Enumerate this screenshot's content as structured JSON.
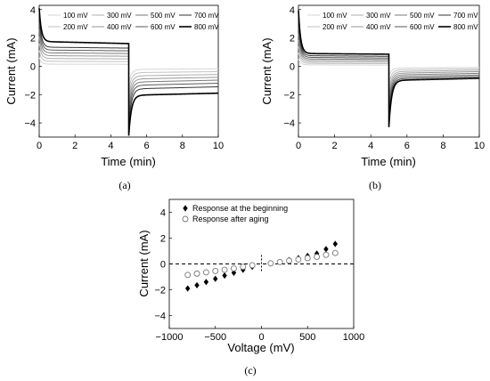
{
  "chart_data": [
    {
      "id": "a",
      "caption": "(a)",
      "type": "line",
      "xlabel": "Time (min)",
      "ylabel": "Current (mA)",
      "xlim": [
        0,
        10
      ],
      "ylim": [
        -5,
        4.3
      ],
      "xticks": [
        "0",
        "2",
        "4",
        "6",
        "8",
        "10"
      ],
      "yticks": [
        "4",
        "2",
        "0",
        "−2",
        "−4"
      ],
      "legend": {
        "position": "top",
        "columns": 4
      },
      "series": [
        {
          "name": "100 mV",
          "color": "#d6d6d6",
          "width": 1.0,
          "peak_on": 0.6,
          "plateau_on": 0.15,
          "end_on": 0.14,
          "peak_off": -1.2,
          "plateau_off": -0.22,
          "end_off": -0.18
        },
        {
          "name": "200 mV",
          "color": "#c2c2c2",
          "width": 1.0,
          "peak_on": 1.1,
          "plateau_on": 0.35,
          "end_on": 0.33,
          "peak_off": -1.7,
          "plateau_off": -0.45,
          "end_off": -0.38
        },
        {
          "name": "300 mV",
          "color": "#adadad",
          "width": 1.0,
          "peak_on": 1.6,
          "plateau_on": 0.55,
          "end_on": 0.52,
          "peak_off": -2.2,
          "plateau_off": -0.68,
          "end_off": -0.58
        },
        {
          "name": "400 mV",
          "color": "#969696",
          "width": 1.0,
          "peak_on": 2.1,
          "plateau_on": 0.75,
          "end_on": 0.71,
          "peak_off": -2.7,
          "plateau_off": -0.9,
          "end_off": -0.78
        },
        {
          "name": "500 mV",
          "color": "#7a7a7a",
          "width": 1.0,
          "peak_on": 2.6,
          "plateau_on": 0.95,
          "end_on": 0.9,
          "peak_off": -3.2,
          "plateau_off": -1.12,
          "end_off": -0.98
        },
        {
          "name": "600 mV",
          "color": "#5a5a5a",
          "width": 1.0,
          "peak_on": 3.1,
          "plateau_on": 1.15,
          "end_on": 1.09,
          "peak_off": -3.7,
          "plateau_off": -1.35,
          "end_off": -1.2
        },
        {
          "name": "700 mV",
          "color": "#333333",
          "width": 1.0,
          "peak_on": 3.6,
          "plateau_on": 1.35,
          "end_on": 1.28,
          "peak_off": -4.3,
          "plateau_off": -1.6,
          "end_off": -1.45
        },
        {
          "name": "800 mV",
          "color": "#000000",
          "width": 1.6,
          "peak_on": 4.1,
          "plateau_on": 1.75,
          "end_on": 1.6,
          "peak_off": -4.9,
          "plateau_off": -2.05,
          "end_off": -1.9
        }
      ]
    },
    {
      "id": "b",
      "caption": "(b)",
      "type": "line",
      "xlabel": "Time (min)",
      "ylabel": "Current (mA)",
      "xlim": [
        0,
        10
      ],
      "ylim": [
        -5,
        4.3
      ],
      "xticks": [
        "0",
        "2",
        "4",
        "6",
        "8",
        "10"
      ],
      "yticks": [
        "4",
        "2",
        "0",
        "−2",
        "−4"
      ],
      "legend": {
        "position": "top",
        "columns": 4
      },
      "series": [
        {
          "name": "100 mV",
          "color": "#d6d6d6",
          "width": 1.0,
          "peak_on": 0.5,
          "plateau_on": 0.1,
          "end_on": 0.08,
          "peak_off": -0.7,
          "plateau_off": -0.12,
          "end_off": -0.08
        },
        {
          "name": "200 mV",
          "color": "#c2c2c2",
          "width": 1.0,
          "peak_on": 0.95,
          "plateau_on": 0.2,
          "end_on": 0.18,
          "peak_off": -1.2,
          "plateau_off": -0.25,
          "end_off": -0.18
        },
        {
          "name": "300 mV",
          "color": "#adadad",
          "width": 1.0,
          "peak_on": 1.4,
          "plateau_on": 0.3,
          "end_on": 0.28,
          "peak_off": -1.7,
          "plateau_off": -0.38,
          "end_off": -0.28
        },
        {
          "name": "400 mV",
          "color": "#969696",
          "width": 1.0,
          "peak_on": 1.85,
          "plateau_on": 0.42,
          "end_on": 0.38,
          "peak_off": -2.2,
          "plateau_off": -0.5,
          "end_off": -0.38
        },
        {
          "name": "500 mV",
          "color": "#7a7a7a",
          "width": 1.0,
          "peak_on": 2.3,
          "plateau_on": 0.52,
          "end_on": 0.48,
          "peak_off": -2.7,
          "plateau_off": -0.62,
          "end_off": -0.5
        },
        {
          "name": "600 mV",
          "color": "#5a5a5a",
          "width": 1.0,
          "peak_on": 2.8,
          "plateau_on": 0.63,
          "end_on": 0.58,
          "peak_off": -3.2,
          "plateau_off": -0.75,
          "end_off": -0.62
        },
        {
          "name": "700 mV",
          "color": "#333333",
          "width": 1.0,
          "peak_on": 3.3,
          "plateau_on": 0.75,
          "end_on": 0.7,
          "peak_off": -3.7,
          "plateau_off": -0.88,
          "end_off": -0.74
        },
        {
          "name": "800 mV",
          "color": "#000000",
          "width": 1.6,
          "peak_on": 3.95,
          "plateau_on": 0.9,
          "end_on": 0.85,
          "peak_off": -4.3,
          "plateau_off": -1.0,
          "end_off": -0.85
        }
      ]
    },
    {
      "id": "c",
      "caption": "(c)",
      "type": "scatter",
      "xlabel": "Voltage (mV)",
      "ylabel": "Current (mA)",
      "xlim": [
        -1000,
        1000
      ],
      "ylim": [
        -5,
        5
      ],
      "xticks": [
        "−1000",
        "−500",
        "0",
        "500",
        "1000"
      ],
      "yticks": [
        "4",
        "2",
        "0",
        "−2",
        "−4"
      ],
      "legend": {
        "position": "top-left"
      },
      "reference_lines": {
        "horizontal": 0,
        "vertical": 0,
        "style": "dashed"
      },
      "series": [
        {
          "name": "Response at the beginning",
          "marker": "diamond-filled",
          "x": [
            -800,
            -700,
            -600,
            -500,
            -400,
            -300,
            -200,
            -100,
            100,
            200,
            300,
            400,
            500,
            600,
            700,
            800
          ],
          "y": [
            -1.9,
            -1.65,
            -1.4,
            -1.15,
            -0.9,
            -0.68,
            -0.45,
            -0.22,
            0.05,
            0.15,
            0.3,
            0.45,
            0.62,
            0.8,
            1.15,
            1.55
          ]
        },
        {
          "name": "Response after aging",
          "marker": "circle-open",
          "x": [
            -800,
            -700,
            -600,
            -500,
            -400,
            -300,
            -200,
            -100,
            100,
            200,
            300,
            400,
            500,
            600,
            700,
            800
          ],
          "y": [
            -0.85,
            -0.75,
            -0.65,
            -0.55,
            -0.45,
            -0.35,
            -0.22,
            -0.1,
            0.05,
            0.15,
            0.25,
            0.35,
            0.45,
            0.55,
            0.7,
            0.85
          ]
        }
      ]
    }
  ]
}
